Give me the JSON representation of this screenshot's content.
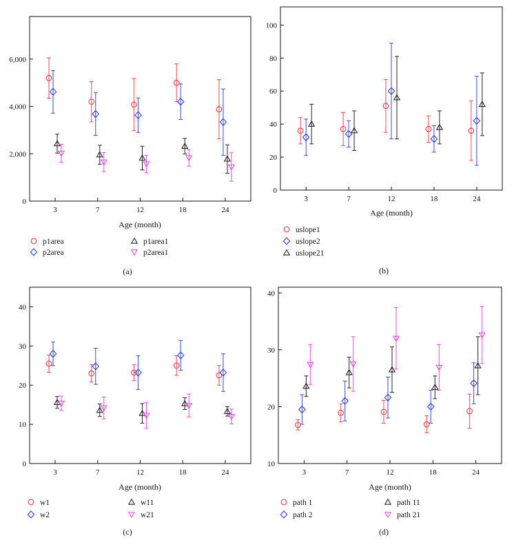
{
  "figure": {
    "panel_labels": [
      "(a)",
      "(b)",
      "(c)",
      "(d)"
    ]
  },
  "colors": {
    "red": "#e8474f",
    "blue": "#3b49d1",
    "black": "#222222",
    "magenta": "#e04ce0"
  },
  "chart_data": [
    {
      "id": "a",
      "type": "scatter",
      "panel_label": "(a)",
      "xlabel": "Age (month)",
      "ylabel": "",
      "categories": [
        "3",
        "7",
        "12",
        "18",
        "24"
      ],
      "ylim": [
        0,
        7800
      ],
      "yticks": [
        0,
        2000,
        4000,
        6000
      ],
      "ytick_labels": [
        "0",
        "2,000",
        "4,000",
        "6,000"
      ],
      "legend_position": "bottom",
      "series": [
        {
          "name": "p1area",
          "marker": "circle",
          "color": "#e8474f",
          "values": [
            5200,
            4200,
            4080,
            5000,
            3880
          ],
          "err": [
            850,
            850,
            1100,
            800,
            1250
          ]
        },
        {
          "name": "p2area",
          "marker": "diamond",
          "color": "#3b49d1",
          "values": [
            4620,
            3680,
            3630,
            4200,
            3340
          ],
          "err": [
            900,
            900,
            730,
            750,
            1400
          ]
        },
        {
          "name": "p1area1",
          "marker": "triangle-up",
          "color": "#222222",
          "values": [
            2430,
            1960,
            1820,
            2320,
            1780
          ],
          "err": [
            400,
            400,
            500,
            330,
            600
          ]
        },
        {
          "name": "p2area1",
          "marker": "triangle-down",
          "color": "#e04ce0",
          "values": [
            2020,
            1650,
            1570,
            1830,
            1440
          ],
          "err": [
            380,
            400,
            370,
            350,
            600
          ]
        }
      ]
    },
    {
      "id": "b",
      "type": "scatter",
      "panel_label": "(b)",
      "xlabel": "Age (month)",
      "ylabel": "",
      "categories": [
        "3",
        "7",
        "12",
        "18",
        "24"
      ],
      "ylim": [
        0,
        111
      ],
      "yticks": [
        0,
        20,
        40,
        60,
        80,
        100
      ],
      "ytick_labels": [
        "0",
        "20",
        "40",
        "60",
        "80",
        "100"
      ],
      "legend_position": "bottom",
      "series": [
        {
          "name": "uslope1",
          "marker": "circle",
          "color": "#e8474f",
          "values": [
            36,
            37,
            51,
            37,
            36
          ],
          "err": [
            8,
            10,
            16,
            8,
            18
          ]
        },
        {
          "name": "uslope2",
          "marker": "diamond",
          "color": "#3b49d1",
          "values": [
            32,
            34,
            60,
            31,
            42
          ],
          "err": [
            11,
            8,
            29,
            8,
            27
          ]
        },
        {
          "name": "uslope21",
          "marker": "triangle-up",
          "color": "#222222",
          "values": [
            40,
            36,
            56,
            38,
            52
          ],
          "err": [
            12,
            12,
            25,
            10,
            19
          ]
        }
      ]
    },
    {
      "id": "c",
      "type": "scatter",
      "panel_label": "(c)",
      "xlabel": "Age (month)",
      "ylabel": "",
      "categories": [
        "3",
        "7",
        "12",
        "18",
        "24"
      ],
      "ylim": [
        0,
        45
      ],
      "yticks": [
        0,
        10,
        20,
        30,
        40
      ],
      "ytick_labels": [
        "0",
        "10",
        "20",
        "30",
        "40"
      ],
      "legend_position": "bottom",
      "series": [
        {
          "name": "w1",
          "marker": "circle",
          "color": "#e8474f",
          "values": [
            25.5,
            23.0,
            23.2,
            25.0,
            22.5
          ],
          "err": [
            2.2,
            2.2,
            2.0,
            2.5,
            2.5
          ]
        },
        {
          "name": "w2",
          "marker": "diamond",
          "color": "#3b49d1",
          "values": [
            28.0,
            24.8,
            23.2,
            27.6,
            23.2
          ],
          "err": [
            3.0,
            4.6,
            4.3,
            3.8,
            4.8
          ]
        },
        {
          "name": "w11",
          "marker": "triangle-up",
          "color": "#222222",
          "values": [
            15.6,
            13.6,
            12.8,
            15.3,
            13.3
          ],
          "err": [
            1.5,
            1.6,
            2.5,
            1.5,
            1.2
          ]
        },
        {
          "name": "w21",
          "marker": "triangle-down",
          "color": "#e04ce0",
          "values": [
            15.4,
            14.2,
            12.3,
            14.8,
            12.0
          ],
          "err": [
            1.8,
            2.8,
            3.3,
            2.9,
            1.9
          ]
        }
      ]
    },
    {
      "id": "d",
      "type": "scatter",
      "panel_label": "(d)",
      "xlabel": "Age (month)",
      "ylabel": "",
      "categories": [
        "3",
        "7",
        "12",
        "18",
        "24"
      ],
      "ylim": [
        10,
        41
      ],
      "yticks": [
        10,
        20,
        30,
        40
      ],
      "ytick_labels": [
        "10",
        "20",
        "30",
        "40"
      ],
      "legend_position": "bottom",
      "series": [
        {
          "name": "path 1",
          "marker": "circle",
          "color": "#e8474f",
          "values": [
            16.8,
            18.9,
            19.1,
            16.9,
            19.2
          ],
          "err": [
            0.9,
            1.6,
            2.0,
            1.5,
            3.0
          ]
        },
        {
          "name": "path 2",
          "marker": "diamond",
          "color": "#3b49d1",
          "values": [
            19.5,
            21.0,
            21.6,
            20.0,
            24.1
          ],
          "err": [
            2.6,
            3.5,
            3.6,
            2.9,
            3.6
          ]
        },
        {
          "name": "path 11",
          "marker": "triangle-up",
          "color": "#222222",
          "values": [
            23.6,
            26.0,
            26.5,
            23.4,
            27.2
          ],
          "err": [
            1.8,
            2.7,
            4.0,
            2.0,
            5.1
          ]
        },
        {
          "name": "path 21",
          "marker": "triangle-down",
          "color": "#e04ce0",
          "values": [
            27.4,
            27.5,
            32.0,
            26.9,
            32.6
          ],
          "err": [
            3.5,
            4.8,
            5.4,
            4.0,
            5.0
          ]
        }
      ]
    }
  ]
}
